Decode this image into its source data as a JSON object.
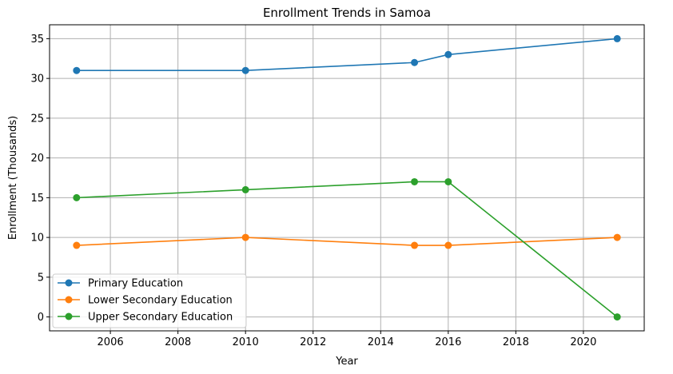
{
  "chart_data": {
    "type": "line",
    "title": "Enrollment Trends in Samoa",
    "xlabel": "Year",
    "ylabel": "Enrollment (Thousands)",
    "xlim": [
      2004.2,
      2021.8
    ],
    "ylim": [
      -1.75,
      36.75
    ],
    "xticks": [
      2006,
      2008,
      2010,
      2012,
      2014,
      2016,
      2018,
      2020
    ],
    "yticks": [
      0,
      5,
      10,
      15,
      20,
      25,
      30,
      35
    ],
    "grid": true,
    "legend_position": "lower-left",
    "x": [
      2005,
      2010,
      2015,
      2016,
      2021
    ],
    "series": [
      {
        "name": "Primary Education",
        "color": "#1f77b4",
        "values": [
          31,
          31,
          32,
          33,
          35
        ]
      },
      {
        "name": "Lower Secondary Education",
        "color": "#ff7f0e",
        "values": [
          9,
          10,
          9,
          9,
          10
        ]
      },
      {
        "name": "Upper Secondary Education",
        "color": "#2ca02c",
        "values": [
          15,
          16,
          17,
          17,
          0
        ]
      }
    ]
  }
}
